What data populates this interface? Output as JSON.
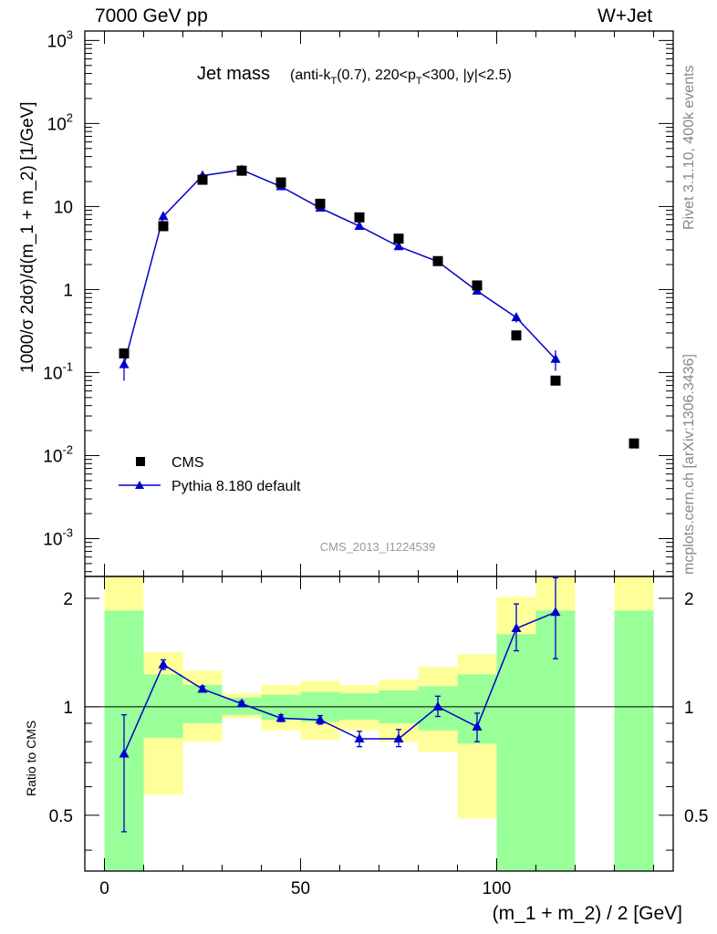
{
  "header": {
    "left": "7000 GeV pp",
    "right": "W+Jet"
  },
  "side_labels": {
    "rivet": "Rivet 3.1.10,  400k events",
    "source": "mcplots.cern.ch [arXiv:1306.3436]"
  },
  "chart_data": {
    "type": "scatter",
    "title": {
      "main": "Jet mass",
      "sub_a": "(anti-k",
      "sub_a_sub": "T",
      "sub_b": "(0.7), 220<p",
      "sub_b_sub": "T",
      "sub_c": "<300, |y|<2.5)"
    },
    "analysis_id": "CMS_2013_I1224539",
    "ylabel_top": "1000/σ 2dσ)/d(m_1 + m_2) [1/GeV]",
    "ylabel_ratio": "Ratio to CMS",
    "xlabel": "(m_1 + m_2) / 2 [GeV]",
    "xlim": [
      -5,
      145
    ],
    "ylim_top": [
      0.00035,
      1300
    ],
    "ylog_top": true,
    "ylim_ratio": [
      0.35,
      2.3
    ],
    "ylog_ratio": true,
    "x_ticks": [
      "0",
      "50",
      "100"
    ],
    "y_ticks_top": [
      "10^-3",
      "10^-2",
      "10^-1",
      "1",
      "10",
      "10^2",
      "10^3"
    ],
    "y_ticks_ratio": [
      "0.5",
      "1",
      "2"
    ],
    "legend": {
      "position": "lower-left",
      "entries": [
        "CMS",
        "Pythia 8.180 default"
      ]
    },
    "series": [
      {
        "name": "CMS",
        "marker": "square",
        "color": "#000000",
        "x": [
          5,
          15,
          25,
          35,
          45,
          55,
          65,
          75,
          85,
          95,
          105,
          115,
          135
        ],
        "y": [
          0.17,
          5.8,
          21.0,
          27.0,
          19.5,
          10.8,
          7.4,
          4.1,
          2.2,
          1.12,
          0.28,
          0.08,
          0.014
        ]
      },
      {
        "name": "Pythia 8.180 default",
        "marker": "triangle",
        "color": "#0000cc",
        "x": [
          5,
          15,
          25,
          35,
          45,
          55,
          65,
          75,
          85,
          95,
          105,
          115
        ],
        "y": [
          0.125,
          7.6,
          23.5,
          27.6,
          17.4,
          9.6,
          5.8,
          3.3,
          2.17,
          0.96,
          0.46,
          0.145
        ],
        "err": [
          0.045,
          0.6,
          1.0,
          1.0,
          0.8,
          0.5,
          0.3,
          0.2,
          0.15,
          0.07,
          0.06,
          0.04
        ]
      }
    ],
    "ratio": {
      "x": [
        5,
        15,
        25,
        35,
        45,
        55,
        65,
        75,
        85,
        95,
        105,
        115
      ],
      "y": [
        0.74,
        1.31,
        1.12,
        1.02,
        0.93,
        0.92,
        0.815,
        0.815,
        1.0,
        0.88,
        1.65,
        1.83
      ],
      "err_lo": [
        0.29,
        0.04,
        0.02,
        0.015,
        0.02,
        0.025,
        0.04,
        0.04,
        0.06,
        0.08,
        0.22,
        0.47
      ],
      "err_hi": [
        0.21,
        0.04,
        0.02,
        0.015,
        0.02,
        0.025,
        0.04,
        0.05,
        0.07,
        0.08,
        0.28,
        0.45
      ],
      "bands": [
        {
          "x0": 0,
          "x1": 10,
          "g_lo": 0.35,
          "g_hi": 1.85,
          "y_lo": 0.35,
          "y_hi": 2.3
        },
        {
          "x0": 10,
          "x1": 20,
          "g_lo": 0.82,
          "g_hi": 1.23,
          "y_lo": 0.57,
          "y_hi": 1.42
        },
        {
          "x0": 20,
          "x1": 30,
          "g_lo": 0.9,
          "g_hi": 1.15,
          "y_lo": 0.8,
          "y_hi": 1.26
        },
        {
          "x0": 30,
          "x1": 40,
          "g_lo": 0.95,
          "g_hi": 1.06,
          "y_lo": 0.93,
          "y_hi": 1.09
        },
        {
          "x0": 40,
          "x1": 50,
          "g_lo": 0.92,
          "g_hi": 1.08,
          "y_lo": 0.86,
          "y_hi": 1.15
        },
        {
          "x0": 50,
          "x1": 60,
          "g_lo": 0.91,
          "g_hi": 1.1,
          "y_lo": 0.81,
          "y_hi": 1.18
        },
        {
          "x0": 60,
          "x1": 70,
          "g_lo": 0.92,
          "g_hi": 1.09,
          "y_lo": 0.86,
          "y_hi": 1.15
        },
        {
          "x0": 70,
          "x1": 80,
          "g_lo": 0.9,
          "g_hi": 1.11,
          "y_lo": 0.8,
          "y_hi": 1.19
        },
        {
          "x0": 80,
          "x1": 90,
          "g_lo": 0.86,
          "g_hi": 1.14,
          "y_lo": 0.75,
          "y_hi": 1.29
        },
        {
          "x0": 90,
          "x1": 100,
          "g_lo": 0.79,
          "g_hi": 1.23,
          "y_lo": 0.49,
          "y_hi": 1.4
        },
        {
          "x0": 100,
          "x1": 110,
          "g_lo": 0.35,
          "g_hi": 1.59,
          "y_lo": 0.35,
          "y_hi": 2.02
        },
        {
          "x0": 110,
          "x1": 120,
          "g_lo": 0.35,
          "g_hi": 1.85,
          "y_lo": 0.35,
          "y_hi": 2.3
        },
        {
          "x0": 130,
          "x1": 140,
          "g_lo": 0.35,
          "g_hi": 1.85,
          "y_lo": 0.35,
          "y_hi": 2.3
        }
      ]
    }
  }
}
